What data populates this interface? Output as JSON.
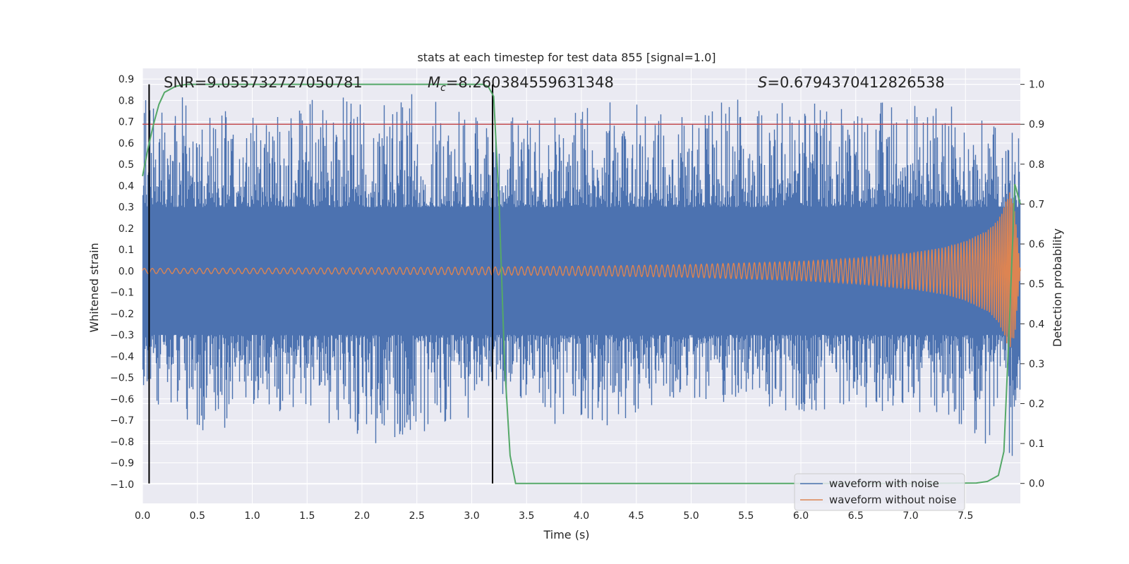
{
  "chart_data": {
    "type": "line",
    "title": "stats at each timestep for test data 855 [signal=1.0]",
    "xlabel": "Time (s)",
    "ylabel": "Whitened strain",
    "ylabel_right": "Detection probability",
    "xlim": [
      0.0,
      8.0
    ],
    "ylim": [
      -1.09,
      0.95
    ],
    "ylim_right": [
      -0.05,
      1.04
    ],
    "x_ticks": [
      "0.0",
      "0.5",
      "1.0",
      "1.5",
      "2.0",
      "2.5",
      "3.0",
      "3.5",
      "4.0",
      "4.5",
      "5.0",
      "5.5",
      "6.0",
      "6.5",
      "7.0",
      "7.5"
    ],
    "y_ticks": [
      "0.9",
      "0.8",
      "0.7",
      "0.6",
      "0.5",
      "0.4",
      "0.3",
      "0.2",
      "0.1",
      "0.0",
      "-0.1",
      "-0.2",
      "-0.3",
      "-0.4",
      "-0.5",
      "-0.6",
      "-0.7",
      "-0.8",
      "-0.9",
      "-1.0"
    ],
    "y_right_ticks": [
      "1.0",
      "0.9",
      "0.8",
      "0.7",
      "0.6",
      "0.5",
      "0.4",
      "0.3",
      "0.2",
      "0.1",
      "0.0"
    ],
    "grid": true,
    "legend_placement": "lower-right",
    "annotations": {
      "snr": "SNR=9.055732727050781",
      "mc": "=8.260384559631348",
      "mc_symbol": "M",
      "mc_sub": "c",
      "s": "=0.6794370412826538",
      "s_symbol": "S"
    },
    "vlines_x": [
      0.06,
      3.19
    ],
    "hline_right_y": 0.9,
    "colors": {
      "noise": "#4c72b0",
      "clean": "#dd8452",
      "prob": "#55a868",
      "threshold": "#c44e52",
      "vline": "#000000",
      "background": "#eaeaf2"
    },
    "series": [
      {
        "name": "waveform with noise",
        "axis": "left",
        "envelope_x": [
          0.0,
          0.5,
          1.0,
          1.5,
          2.0,
          2.5,
          3.0,
          3.5,
          4.0,
          4.5,
          5.0,
          5.5,
          6.0,
          6.5,
          7.0,
          7.5,
          8.0
        ],
        "envelope_max": [
          0.85,
          0.8,
          0.78,
          0.8,
          0.82,
          0.83,
          0.72,
          0.72,
          0.78,
          0.8,
          0.82,
          0.8,
          0.82,
          0.78,
          0.8,
          0.76,
          0.65
        ],
        "envelope_min": [
          -0.6,
          -0.75,
          -0.72,
          -0.65,
          -0.81,
          -0.8,
          -0.68,
          -0.62,
          -0.81,
          -0.66,
          -0.62,
          -0.64,
          -0.68,
          -0.65,
          -0.7,
          -0.72,
          -0.97
        ]
      },
      {
        "name": "waveform without noise",
        "axis": "left",
        "amplitude_x": [
          0.0,
          1.0,
          2.0,
          3.0,
          4.0,
          5.0,
          6.0,
          6.5,
          7.0,
          7.3,
          7.5,
          7.7,
          7.8,
          7.85,
          7.9,
          7.95,
          8.0
        ],
        "amplitude": [
          0.012,
          0.013,
          0.015,
          0.018,
          0.022,
          0.03,
          0.045,
          0.06,
          0.085,
          0.11,
          0.14,
          0.19,
          0.24,
          0.3,
          0.38,
          0.3,
          0.0
        ]
      },
      {
        "name": "detection probability",
        "axis": "right",
        "x": [
          0.0,
          0.05,
          0.1,
          0.15,
          0.2,
          0.3,
          0.4,
          0.6,
          1.0,
          2.0,
          3.0,
          3.1,
          3.15,
          3.2,
          3.25,
          3.3,
          3.35,
          3.4,
          3.5,
          4.0,
          5.0,
          6.0,
          7.0,
          7.6,
          7.7,
          7.8,
          7.85,
          7.9,
          7.95,
          8.0
        ],
        "y": [
          0.77,
          0.84,
          0.9,
          0.95,
          0.98,
          0.995,
          1.0,
          1.0,
          1.0,
          1.0,
          1.0,
          1.0,
          0.995,
          0.97,
          0.7,
          0.3,
          0.07,
          0.0,
          0.0,
          0.0,
          0.0,
          0.0,
          0.0,
          0.001,
          0.005,
          0.02,
          0.08,
          0.4,
          0.75,
          0.7
        ]
      }
    ]
  }
}
